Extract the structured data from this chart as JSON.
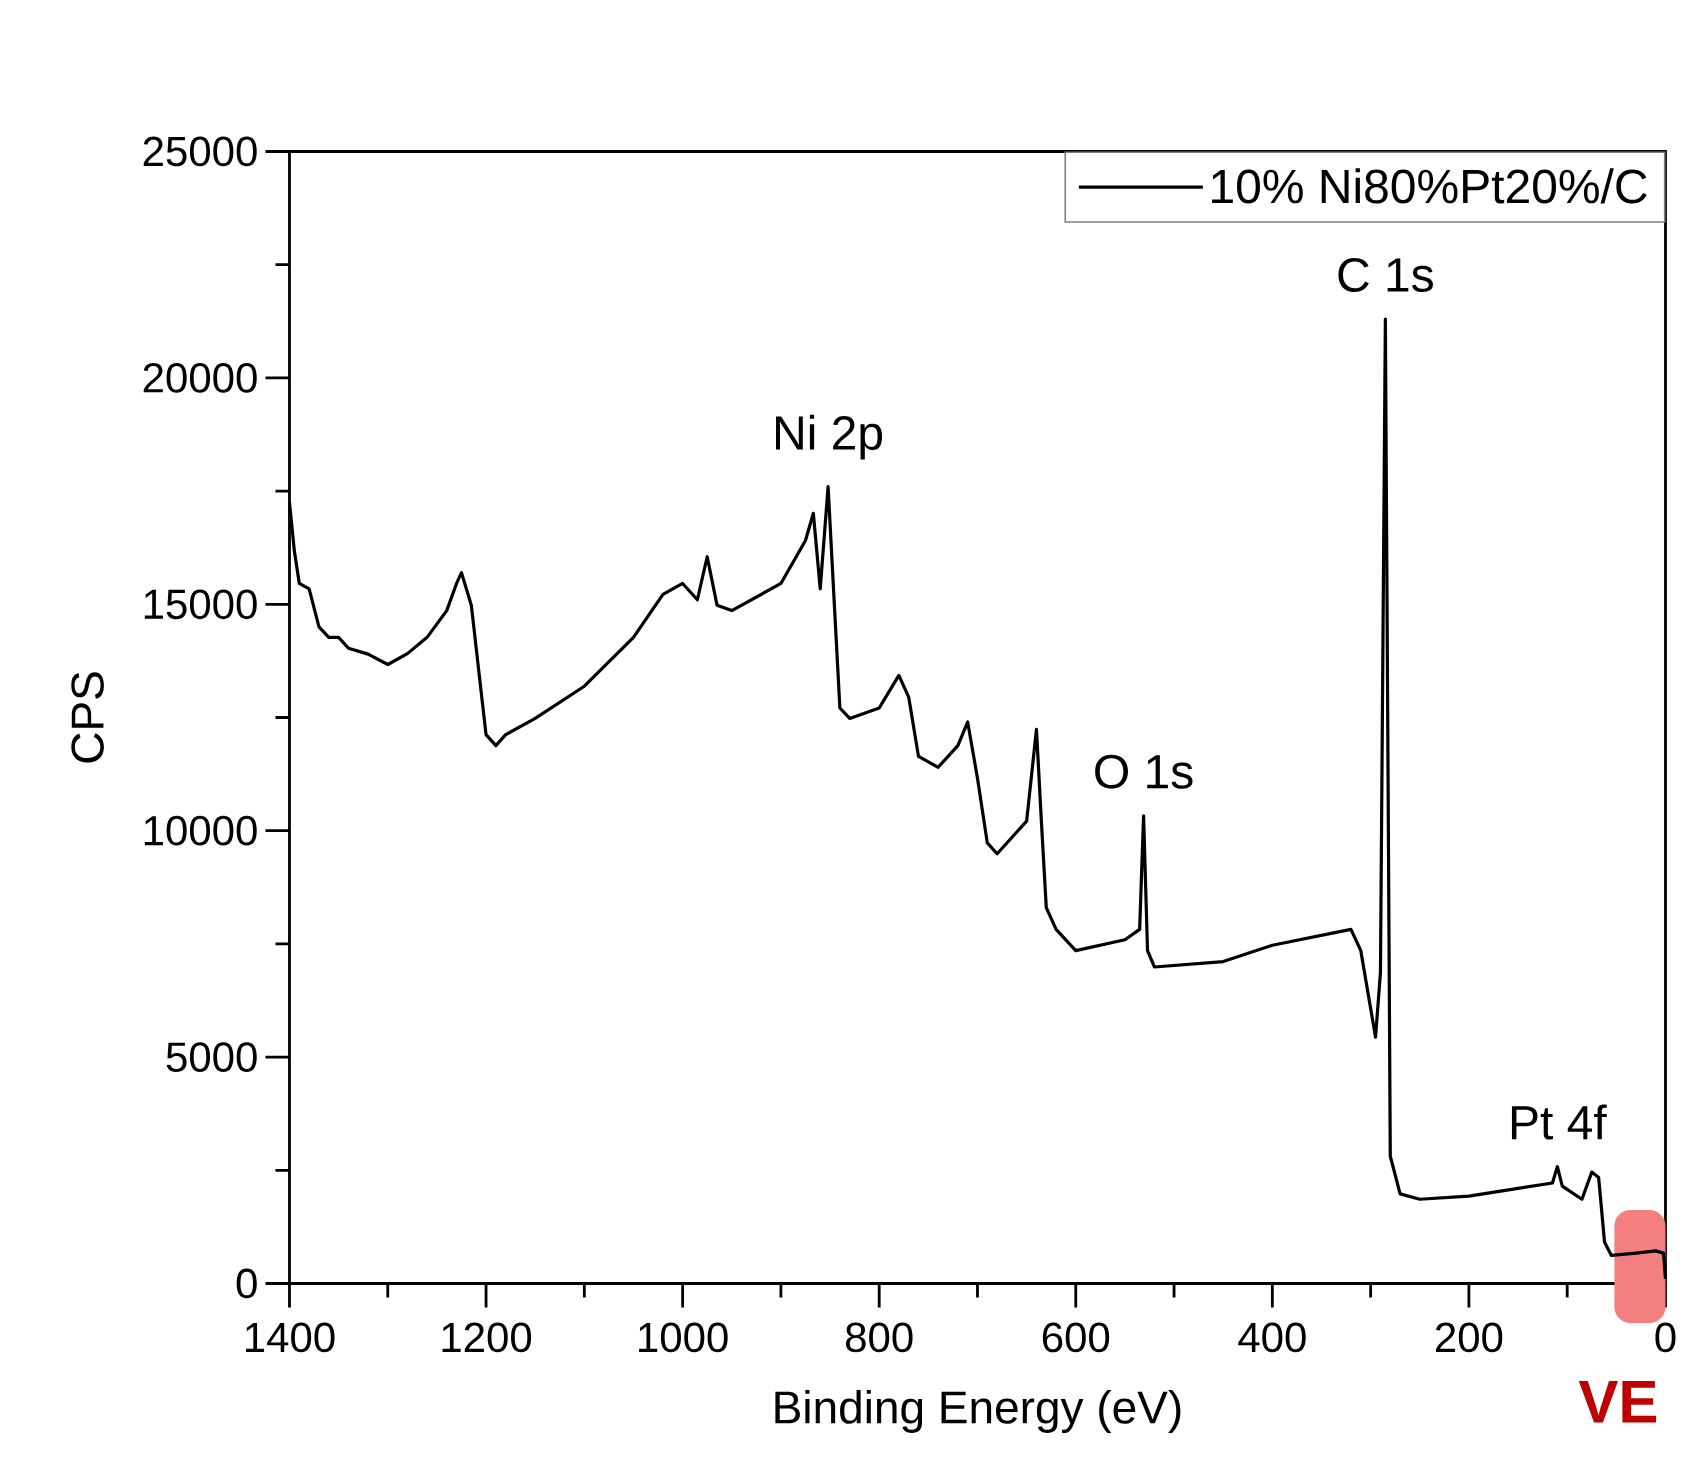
{
  "chart_data": {
    "type": "line",
    "xlabel": "Binding Energy (eV)",
    "ylabel": "CPS",
    "xlim": [
      1400,
      0
    ],
    "ylim": [
      0,
      25000
    ],
    "xticks": [
      1400,
      1200,
      1000,
      800,
      600,
      400,
      200,
      0
    ],
    "yticks": [
      0,
      5000,
      10000,
      15000,
      20000,
      25000
    ],
    "legend": "top right",
    "grid": false,
    "marker": "none",
    "line_style": "solid",
    "annotations": [
      {
        "text": "Ni 2p",
        "x": 852,
        "y": 17600
      },
      {
        "text": "O 1s",
        "x": 531,
        "y": 10330
      },
      {
        "text": "C 1s",
        "x": 285,
        "y": 21300
      },
      {
        "text": "Pt 4f",
        "x": 110,
        "y": 2580
      }
    ],
    "bands": [
      {
        "axis": "x",
        "from": 52,
        "to": 0,
        "label": "VE",
        "color": "#f47f7f"
      }
    ],
    "series": [
      {
        "name": "10% Ni80%Pt20%/C",
        "color": "#000000",
        "x": [
          1400,
          1395,
          1390,
          1380,
          1370,
          1360,
          1350,
          1340,
          1320,
          1300,
          1280,
          1260,
          1240,
          1230,
          1225,
          1215,
          1205,
          1200,
          1190,
          1180,
          1150,
          1100,
          1050,
          1020,
          1000,
          985,
          975,
          965,
          950,
          900,
          875,
          867,
          860,
          852,
          845,
          840,
          830,
          800,
          780,
          770,
          760,
          740,
          720,
          710,
          700,
          690,
          680,
          660,
          650,
          640,
          635,
          630,
          620,
          600,
          550,
          535,
          531,
          527,
          520,
          450,
          400,
          320,
          310,
          295,
          290,
          285,
          280,
          270,
          250,
          200,
          150,
          115,
          110,
          105,
          85,
          75,
          68,
          62,
          55,
          30,
          10,
          2,
          0
        ],
        "values": [
          17250,
          16170,
          15460,
          15340,
          14500,
          14270,
          14270,
          14030,
          13900,
          13670,
          13910,
          14270,
          14860,
          15460,
          15700,
          14980,
          13070,
          12120,
          11880,
          12120,
          12480,
          13190,
          14270,
          15220,
          15460,
          15100,
          16050,
          14980,
          14860,
          15460,
          16410,
          17010,
          15340,
          17600,
          14740,
          12710,
          12480,
          12710,
          13430,
          12950,
          11640,
          11400,
          11880,
          12400,
          11160,
          9730,
          9490,
          9970,
          10210,
          12240,
          10210,
          8300,
          7820,
          7350,
          7590,
          7820,
          10330,
          7350,
          6990,
          7110,
          7470,
          7820,
          7350,
          5440,
          6870,
          21300,
          2810,
          1980,
          1860,
          1930,
          2100,
          2220,
          2580,
          2150,
          1860,
          2460,
          2340,
          910,
          620,
          670,
          720,
          670,
          100
        ]
      }
    ]
  }
}
